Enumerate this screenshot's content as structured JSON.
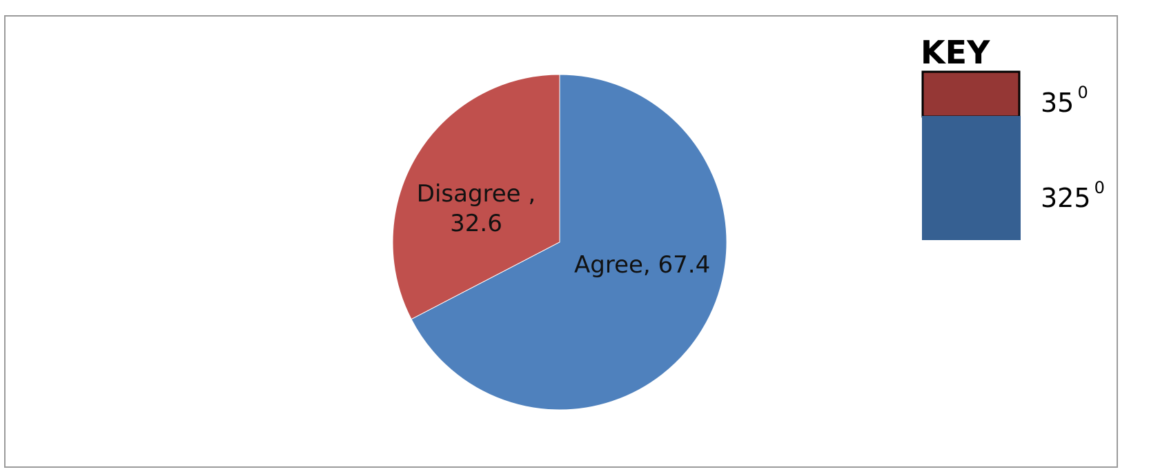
{
  "chart_data": {
    "type": "pie",
    "slices": [
      {
        "label": "Disagree ,",
        "value": 32.6,
        "color": "#C0504D"
      },
      {
        "label": "Agree,",
        "value": 67.4,
        "color": "#4F81BD"
      }
    ],
    "data_labels": [
      {
        "lines": [
          "Disagree ,",
          "32.6"
        ]
      },
      {
        "lines": [
          "Agree, 67.4"
        ]
      }
    ],
    "key": {
      "title": "KEY",
      "entries": [
        {
          "value": "35",
          "superscript": "0",
          "color": "#953735"
        },
        {
          "value": "325",
          "superscript": "0",
          "color": "#366092"
        }
      ]
    }
  }
}
